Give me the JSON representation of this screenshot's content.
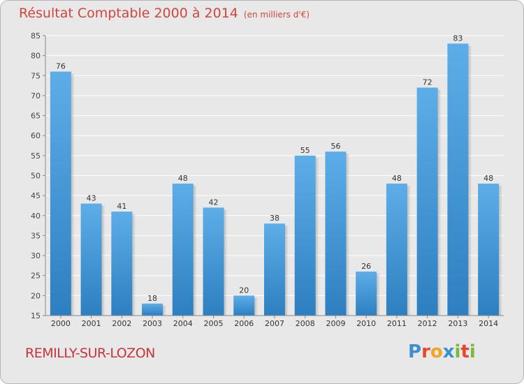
{
  "title": "Résultat Comptable 2000 à 2014",
  "subtitle": "(en milliers d'€)",
  "commune": "REMILLY-SUR-LOZON",
  "logo": {
    "letters": [
      "P",
      "r",
      "o",
      "x",
      "i",
      "t",
      "i"
    ],
    "colors": [
      "#3a8fd0",
      "#e8462e",
      "#f2a51e",
      "#3a8fd0",
      "#7ab939",
      "#e8462e",
      "#7ab939"
    ]
  },
  "colors": {
    "bar_top": "#5dade8",
    "bar_bottom": "#2e7fc0",
    "title": "#d0463f",
    "grid": "#ffffff"
  },
  "chart_data": {
    "type": "bar",
    "categories": [
      "2000",
      "2001",
      "2002",
      "2003",
      "2004",
      "2005",
      "2006",
      "2007",
      "2008",
      "2009",
      "2010",
      "2011",
      "2012",
      "2013",
      "2014"
    ],
    "values": [
      76,
      43,
      41,
      18,
      48,
      42,
      20,
      38,
      55,
      56,
      26,
      48,
      72,
      83,
      48
    ],
    "ylim": [
      15,
      85
    ],
    "yticks": [
      15,
      20,
      25,
      30,
      35,
      40,
      45,
      50,
      55,
      60,
      65,
      70,
      75,
      80,
      85
    ],
    "grid": true,
    "title": "Résultat Comptable 2000 à 2014",
    "ylabel": "",
    "xlabel": ""
  }
}
